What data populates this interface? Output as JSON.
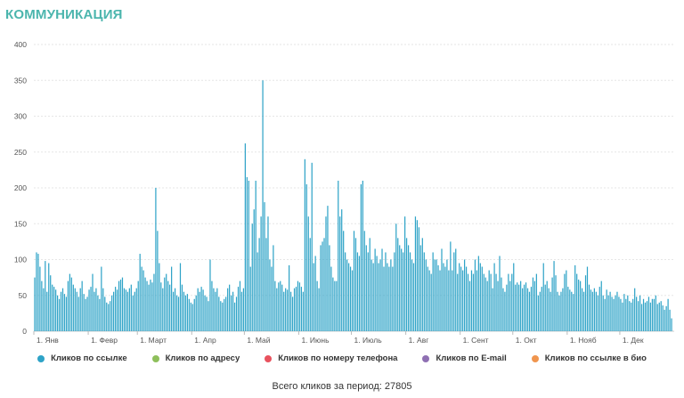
{
  "title": "КОММУНИКАЦИЯ",
  "total_label": "Всего кликов за период: 27805",
  "chart_data": {
    "type": "bar",
    "stacked": true,
    "ylim": [
      0,
      400
    ],
    "yticks": [
      0,
      50,
      100,
      150,
      200,
      250,
      300,
      350,
      400
    ],
    "grid": true,
    "legend_position": "bottom",
    "months": [
      "1. Янв",
      "1. Февр",
      "1. Март",
      "1. Апр",
      "1. Май",
      "1. Июнь",
      "1. Июль",
      "1. Авг",
      "1. Сент",
      "1. Окт",
      "1. Нояб",
      "1. Дек"
    ],
    "month_start_day": [
      0,
      31,
      59,
      90,
      120,
      151,
      181,
      212,
      243,
      273,
      304,
      334
    ],
    "days": 365,
    "series": [
      {
        "name": "Кликов по ссылке",
        "color": "#2ea3c7",
        "values": [
          75,
          110,
          108,
          90,
          70,
          60,
          98,
          55,
          95,
          78,
          65,
          62,
          58,
          50,
          45,
          55,
          60,
          52,
          48,
          70,
          80,
          75,
          65,
          60,
          55,
          48,
          60,
          70,
          52,
          45,
          48,
          58,
          62,
          80,
          55,
          60,
          50,
          45,
          90,
          60,
          48,
          40,
          38,
          42,
          50,
          55,
          62,
          58,
          70,
          72,
          75,
          60,
          58,
          55,
          60,
          65,
          50,
          55,
          60,
          70,
          108,
          90,
          85,
          75,
          70,
          65,
          72,
          68,
          80,
          200,
          140,
          95,
          68,
          60,
          75,
          80,
          70,
          65,
          90,
          55,
          60,
          50,
          48,
          95,
          65,
          55,
          50,
          52,
          45,
          40,
          38,
          45,
          50,
          60,
          55,
          62,
          58,
          50,
          48,
          42,
          100,
          70,
          60,
          55,
          60,
          48,
          42,
          40,
          45,
          48,
          60,
          65,
          50,
          55,
          40,
          48,
          62,
          70,
          55,
          60,
          262,
          215,
          210,
          90,
          150,
          170,
          210,
          110,
          130,
          160,
          350,
          180,
          130,
          160,
          100,
          90,
          120,
          70,
          60,
          68,
          70,
          65,
          55,
          60,
          58,
          92,
          55,
          48,
          60,
          62,
          70,
          68,
          62,
          55,
          240,
          205,
          160,
          130,
          235,
          95,
          105,
          70,
          60,
          120,
          125,
          130,
          160,
          175,
          120,
          90,
          75,
          70,
          70,
          210,
          160,
          170,
          140,
          110,
          100,
          95,
          90,
          85,
          140,
          130,
          110,
          105,
          205,
          210,
          140,
          120,
          110,
          130,
          100,
          95,
          115,
          105,
          95,
          100,
          115,
          90,
          110,
          95,
          90,
          100,
          90,
          110,
          150,
          130,
          120,
          115,
          110,
          160,
          130,
          120,
          110,
          100,
          95,
          160,
          155,
          145,
          120,
          130,
          110,
          100,
          90,
          85,
          80,
          110,
          100,
          100,
          92,
          85,
          115,
          95,
          90,
          100,
          85,
          125,
          85,
          110,
          115,
          80,
          95,
          90,
          85,
          100,
          90,
          80,
          70,
          85,
          80,
          100,
          85,
          105,
          95,
          90,
          80,
          75,
          70,
          85,
          80,
          60,
          95,
          80,
          70,
          105,
          75,
          60,
          55,
          65,
          80,
          70,
          80,
          95,
          65,
          68,
          65,
          70,
          60,
          65,
          68,
          60,
          55,
          62,
          75,
          70,
          80,
          50,
          55,
          62,
          95,
          65,
          70,
          60,
          55,
          75,
          98,
          78,
          55,
          50,
          55,
          60,
          80,
          85,
          62,
          58,
          55,
          52,
          92,
          80,
          72,
          70,
          60,
          55,
          78,
          90,
          65,
          58,
          55,
          60,
          55,
          50,
          62,
          70,
          50,
          45,
          58,
          50,
          55,
          48,
          45,
          50,
          55,
          48,
          45,
          40,
          52,
          45,
          50,
          42,
          40,
          45,
          60,
          48,
          42,
          50,
          38,
          45,
          40,
          42,
          48,
          40,
          45,
          45,
          50,
          38,
          40,
          42,
          36,
          30,
          35,
          45,
          30,
          18
        ]
      },
      {
        "name": "Кликов по адресу",
        "color": "#8ebf5b",
        "values": []
      },
      {
        "name": "Кликов по номеру телефона",
        "color": "#e8525e",
        "values": []
      },
      {
        "name": "Кликов по E-mail",
        "color": "#8f70b3",
        "values": []
      },
      {
        "name": "Кликов по ссылке в био",
        "color": "#f0954e",
        "values": []
      }
    ]
  }
}
